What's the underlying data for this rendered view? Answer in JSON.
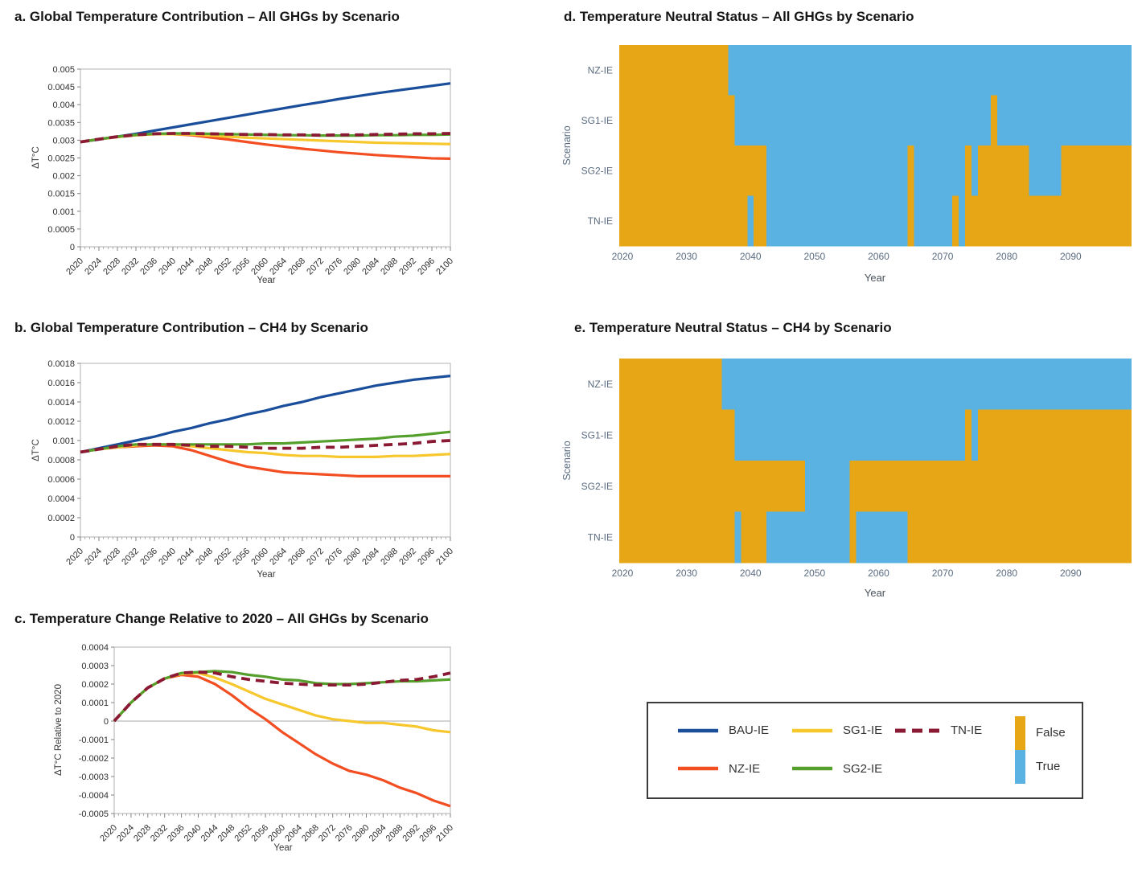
{
  "figure": {
    "background": "#ffffff"
  },
  "colors": {
    "series": {
      "BAU-IE": "#1a4e9b",
      "NZ-IE": "#f24e22",
      "SG1-IE": "#f7c72e",
      "SG2-IE": "#55a02d",
      "TN-IE": "#8a1a33"
    },
    "status": {
      "false": "#e7a616",
      "true": "#5ab2e3"
    },
    "line_tick_label": "#2f2f2f",
    "line_axis_label": "#3a3a3a",
    "heatmap_tick_label": "#5a6b80",
    "heatmap_axis_label": "#49525c",
    "spine": "#bdbdbd",
    "tick_mark": "#808080",
    "zero_line": "#bbbbbb"
  },
  "legend": {
    "items": [
      {
        "label": "BAU-IE",
        "style": "solid"
      },
      {
        "label": "SG1-IE",
        "style": "solid"
      },
      {
        "label": "TN-IE",
        "style": "dashed"
      },
      {
        "label": "NZ-IE",
        "style": "solid"
      },
      {
        "label": "SG2-IE",
        "style": "solid"
      }
    ],
    "status": {
      "false_label": "False",
      "true_label": "True"
    }
  },
  "chart_data": [
    {
      "id": "a",
      "type": "line",
      "title": "a. Global Temperature Contribution – All GHGs by Scenario",
      "xlabel": "Year",
      "ylabel": "ΔT°C",
      "xlim": [
        2020,
        2100
      ],
      "x_major_step": 4,
      "x_minor_step": 1,
      "ylim": [
        0,
        0.005
      ],
      "y_ticks": [
        0,
        0.0005,
        0.001,
        0.0015,
        0.002,
        0.0025,
        0.003,
        0.0035,
        0.004,
        0.0045,
        0.005
      ],
      "x_ticks": [
        2020,
        2024,
        2028,
        2032,
        2036,
        2040,
        2044,
        2048,
        2052,
        2056,
        2060,
        2064,
        2068,
        2072,
        2076,
        2080,
        2084,
        2088,
        2092,
        2096,
        2100
      ],
      "x": [
        2020,
        2024,
        2028,
        2032,
        2036,
        2040,
        2044,
        2048,
        2052,
        2056,
        2060,
        2064,
        2068,
        2072,
        2076,
        2080,
        2084,
        2088,
        2092,
        2096,
        2100
      ],
      "series": [
        {
          "name": "BAU-IE",
          "dash": false,
          "values": [
            0.00295,
            0.00302,
            0.0031,
            0.00318,
            0.00327,
            0.00336,
            0.00345,
            0.00354,
            0.00363,
            0.00372,
            0.00381,
            0.0039,
            0.00399,
            0.00407,
            0.00416,
            0.00424,
            0.00432,
            0.00439,
            0.00446,
            0.00453,
            0.0046
          ]
        },
        {
          "name": "NZ-IE",
          "dash": false,
          "values": [
            0.00295,
            0.00303,
            0.00309,
            0.00314,
            0.00317,
            0.00317,
            0.00314,
            0.00308,
            0.00302,
            0.00295,
            0.00288,
            0.00282,
            0.00276,
            0.00271,
            0.00266,
            0.00262,
            0.00258,
            0.00255,
            0.00252,
            0.00249,
            0.00248
          ]
        },
        {
          "name": "SG1-IE",
          "dash": false,
          "values": [
            0.00295,
            0.00303,
            0.00309,
            0.00314,
            0.00317,
            0.00317,
            0.00316,
            0.00313,
            0.0031,
            0.00307,
            0.00305,
            0.00303,
            0.00301,
            0.00299,
            0.00297,
            0.00295,
            0.00293,
            0.00292,
            0.00291,
            0.0029,
            0.00289
          ]
        },
        {
          "name": "SG2-IE",
          "dash": false,
          "values": [
            0.00295,
            0.00303,
            0.0031,
            0.00315,
            0.00318,
            0.00319,
            0.00319,
            0.00318,
            0.00317,
            0.00316,
            0.00315,
            0.00314,
            0.00314,
            0.00313,
            0.00313,
            0.00313,
            0.00314,
            0.00314,
            0.00315,
            0.00315,
            0.00316
          ]
        },
        {
          "name": "TN-IE",
          "dash": true,
          "values": [
            0.00295,
            0.00303,
            0.0031,
            0.00315,
            0.00318,
            0.00319,
            0.00319,
            0.00318,
            0.00317,
            0.00316,
            0.00316,
            0.00315,
            0.00315,
            0.00314,
            0.00315,
            0.00315,
            0.00316,
            0.00317,
            0.00318,
            0.00318,
            0.00319
          ]
        }
      ]
    },
    {
      "id": "b",
      "type": "line",
      "title": "b. Global Temperature Contribution – CH4 by Scenario",
      "xlabel": "Year",
      "ylabel": "ΔT°C",
      "xlim": [
        2020,
        2100
      ],
      "x_major_step": 4,
      "x_minor_step": 1,
      "ylim": [
        0,
        0.0018
      ],
      "y_ticks": [
        0,
        0.0002,
        0.0004,
        0.0006,
        0.0008,
        0.001,
        0.0012,
        0.0014,
        0.0016,
        0.0018
      ],
      "x_ticks": [
        2020,
        2024,
        2028,
        2032,
        2036,
        2040,
        2044,
        2048,
        2052,
        2056,
        2060,
        2064,
        2068,
        2072,
        2076,
        2080,
        2084,
        2088,
        2092,
        2096,
        2100
      ],
      "x": [
        2020,
        2024,
        2028,
        2032,
        2036,
        2040,
        2044,
        2048,
        2052,
        2056,
        2060,
        2064,
        2068,
        2072,
        2076,
        2080,
        2084,
        2088,
        2092,
        2096,
        2100
      ],
      "series": [
        {
          "name": "BAU-IE",
          "dash": false,
          "values": [
            0.00088,
            0.00092,
            0.00096,
            0.001,
            0.00104,
            0.00109,
            0.00113,
            0.00118,
            0.00122,
            0.00127,
            0.00131,
            0.00136,
            0.0014,
            0.00145,
            0.00149,
            0.00153,
            0.00157,
            0.0016,
            0.00163,
            0.00165,
            0.00167
          ]
        },
        {
          "name": "NZ-IE",
          "dash": false,
          "values": [
            0.00088,
            0.00091,
            0.00093,
            0.00094,
            0.00095,
            0.00094,
            0.0009,
            0.00084,
            0.00078,
            0.00073,
            0.0007,
            0.00067,
            0.00066,
            0.00065,
            0.00064,
            0.00063,
            0.00063,
            0.00063,
            0.00063,
            0.00063,
            0.00063
          ]
        },
        {
          "name": "SG1-IE",
          "dash": false,
          "values": [
            0.00088,
            0.00091,
            0.00093,
            0.00095,
            0.00096,
            0.00096,
            0.00094,
            0.00092,
            0.0009,
            0.00088,
            0.00087,
            0.00085,
            0.00084,
            0.00084,
            0.00083,
            0.00083,
            0.00083,
            0.00084,
            0.00084,
            0.00085,
            0.00086
          ]
        },
        {
          "name": "SG2-IE",
          "dash": false,
          "values": [
            0.00088,
            0.00091,
            0.00094,
            0.00096,
            0.00096,
            0.00096,
            0.00096,
            0.00096,
            0.00096,
            0.00096,
            0.00097,
            0.00097,
            0.00098,
            0.00099,
            0.001,
            0.00101,
            0.00102,
            0.00104,
            0.00105,
            0.00107,
            0.00109
          ]
        },
        {
          "name": "TN-IE",
          "dash": true,
          "values": [
            0.00088,
            0.00091,
            0.00094,
            0.00096,
            0.00096,
            0.00096,
            0.00095,
            0.00094,
            0.00094,
            0.00093,
            0.00092,
            0.00092,
            0.00092,
            0.00093,
            0.00093,
            0.00094,
            0.00095,
            0.00096,
            0.00097,
            0.00099,
            0.001
          ]
        }
      ]
    },
    {
      "id": "c",
      "type": "line",
      "title": "c. Temperature Change Relative to 2020 – All GHGs by Scenario",
      "xlabel": "Year",
      "ylabel": "ΔT°C Relative to 2020",
      "xlim": [
        2020,
        2100
      ],
      "x_major_step": 4,
      "x_minor_step": 1,
      "ylim": [
        -0.0005,
        0.0004
      ],
      "zero_line": true,
      "y_ticks": [
        -0.0005,
        -0.0004,
        -0.0003,
        -0.0002,
        -0.0001,
        0,
        0.0001,
        0.0002,
        0.0003,
        0.0004
      ],
      "x_ticks": [
        2020,
        2024,
        2028,
        2032,
        2036,
        2040,
        2044,
        2048,
        2052,
        2056,
        2060,
        2064,
        2068,
        2072,
        2076,
        2080,
        2084,
        2088,
        2092,
        2096,
        2100
      ],
      "x": [
        2020,
        2024,
        2028,
        2032,
        2036,
        2040,
        2044,
        2048,
        2052,
        2056,
        2060,
        2064,
        2068,
        2072,
        2076,
        2080,
        2084,
        2088,
        2092,
        2096,
        2100
      ],
      "series": [
        {
          "name": "NZ-IE",
          "dash": false,
          "values": [
            0,
            0.0001,
            0.00018,
            0.00023,
            0.00025,
            0.00024,
            0.0002,
            0.00014,
            7e-05,
            1e-05,
            -6e-05,
            -0.00012,
            -0.00018,
            -0.00023,
            -0.00027,
            -0.00029,
            -0.00032,
            -0.00036,
            -0.00039,
            -0.00043,
            -0.00046
          ]
        },
        {
          "name": "SG1-IE",
          "dash": false,
          "values": [
            0,
            0.0001,
            0.00018,
            0.00023,
            0.000255,
            0.00026,
            0.000235,
            0.0002,
            0.00016,
            0.00012,
            9e-05,
            6e-05,
            3e-05,
            1e-05,
            0,
            -1e-05,
            -1e-05,
            -2e-05,
            -3e-05,
            -5e-05,
            -6e-05
          ]
        },
        {
          "name": "SG2-IE",
          "dash": false,
          "values": [
            0,
            0.0001,
            0.00018,
            0.00023,
            0.00026,
            0.000265,
            0.00027,
            0.000265,
            0.00025,
            0.00024,
            0.000225,
            0.00022,
            0.000205,
            0.0002,
            0.0002,
            0.000205,
            0.00021,
            0.000215,
            0.000215,
            0.00022,
            0.000225
          ]
        },
        {
          "name": "TN-IE",
          "dash": true,
          "values": [
            0,
            0.0001,
            0.00018,
            0.00023,
            0.00026,
            0.000265,
            0.00026,
            0.00024,
            0.000225,
            0.000215,
            0.000205,
            0.0002,
            0.000195,
            0.000195,
            0.000195,
            0.0002,
            0.00021,
            0.00022,
            0.000225,
            0.00024,
            0.00026
          ]
        }
      ]
    },
    {
      "id": "d",
      "type": "heatmap",
      "title": "d. Temperature Neutral Status – All GHGs by Scenario",
      "xlabel": "Year",
      "ylabel": "Scenario",
      "x_range": [
        2020,
        2099
      ],
      "x_ticks": [
        2020,
        2030,
        2040,
        2050,
        2060,
        2070,
        2080,
        2090
      ],
      "false_label": "False",
      "true_label": "True",
      "rows": [
        {
          "name": "NZ-IE",
          "segments": [
            [
              2020,
              2036,
              false
            ],
            [
              2037,
              2099,
              true
            ]
          ]
        },
        {
          "name": "SG1-IE",
          "segments": [
            [
              2020,
              2037,
              false
            ],
            [
              2038,
              2077,
              true
            ],
            [
              2078,
              2078,
              false
            ],
            [
              2079,
              2099,
              true
            ]
          ]
        },
        {
          "name": "SG2-IE",
          "segments": [
            [
              2020,
              2042,
              false
            ],
            [
              2043,
              2064,
              true
            ],
            [
              2065,
              2065,
              false
            ],
            [
              2066,
              2073,
              true
            ],
            [
              2074,
              2074,
              false
            ],
            [
              2075,
              2075,
              true
            ],
            [
              2076,
              2083,
              false
            ],
            [
              2084,
              2088,
              true
            ],
            [
              2089,
              2099,
              false
            ]
          ]
        },
        {
          "name": "TN-IE",
          "segments": [
            [
              2020,
              2039,
              false
            ],
            [
              2040,
              2040,
              true
            ],
            [
              2041,
              2042,
              false
            ],
            [
              2043,
              2064,
              true
            ],
            [
              2065,
              2065,
              false
            ],
            [
              2066,
              2071,
              true
            ],
            [
              2072,
              2072,
              false
            ],
            [
              2073,
              2073,
              true
            ],
            [
              2074,
              2099,
              false
            ]
          ]
        }
      ]
    },
    {
      "id": "e",
      "type": "heatmap",
      "title": "e. Temperature Neutral Status – CH4 by Scenario",
      "xlabel": "Year",
      "ylabel": "Scenario",
      "x_range": [
        2020,
        2099
      ],
      "x_ticks": [
        2020,
        2030,
        2040,
        2050,
        2060,
        2070,
        2080,
        2090
      ],
      "false_label": "False",
      "true_label": "True",
      "rows": [
        {
          "name": "NZ-IE",
          "segments": [
            [
              2020,
              2035,
              false
            ],
            [
              2036,
              2099,
              true
            ]
          ]
        },
        {
          "name": "SG1-IE",
          "segments": [
            [
              2020,
              2037,
              false
            ],
            [
              2038,
              2073,
              true
            ],
            [
              2074,
              2074,
              false
            ],
            [
              2075,
              2075,
              true
            ],
            [
              2076,
              2099,
              false
            ]
          ]
        },
        {
          "name": "SG2-IE",
          "segments": [
            [
              2020,
              2048,
              false
            ],
            [
              2049,
              2055,
              true
            ],
            [
              2056,
              2099,
              false
            ]
          ]
        },
        {
          "name": "TN-IE",
          "segments": [
            [
              2020,
              2037,
              false
            ],
            [
              2038,
              2038,
              true
            ],
            [
              2039,
              2042,
              false
            ],
            [
              2043,
              2055,
              true
            ],
            [
              2056,
              2056,
              false
            ],
            [
              2057,
              2064,
              true
            ],
            [
              2065,
              2099,
              false
            ]
          ]
        }
      ]
    }
  ]
}
